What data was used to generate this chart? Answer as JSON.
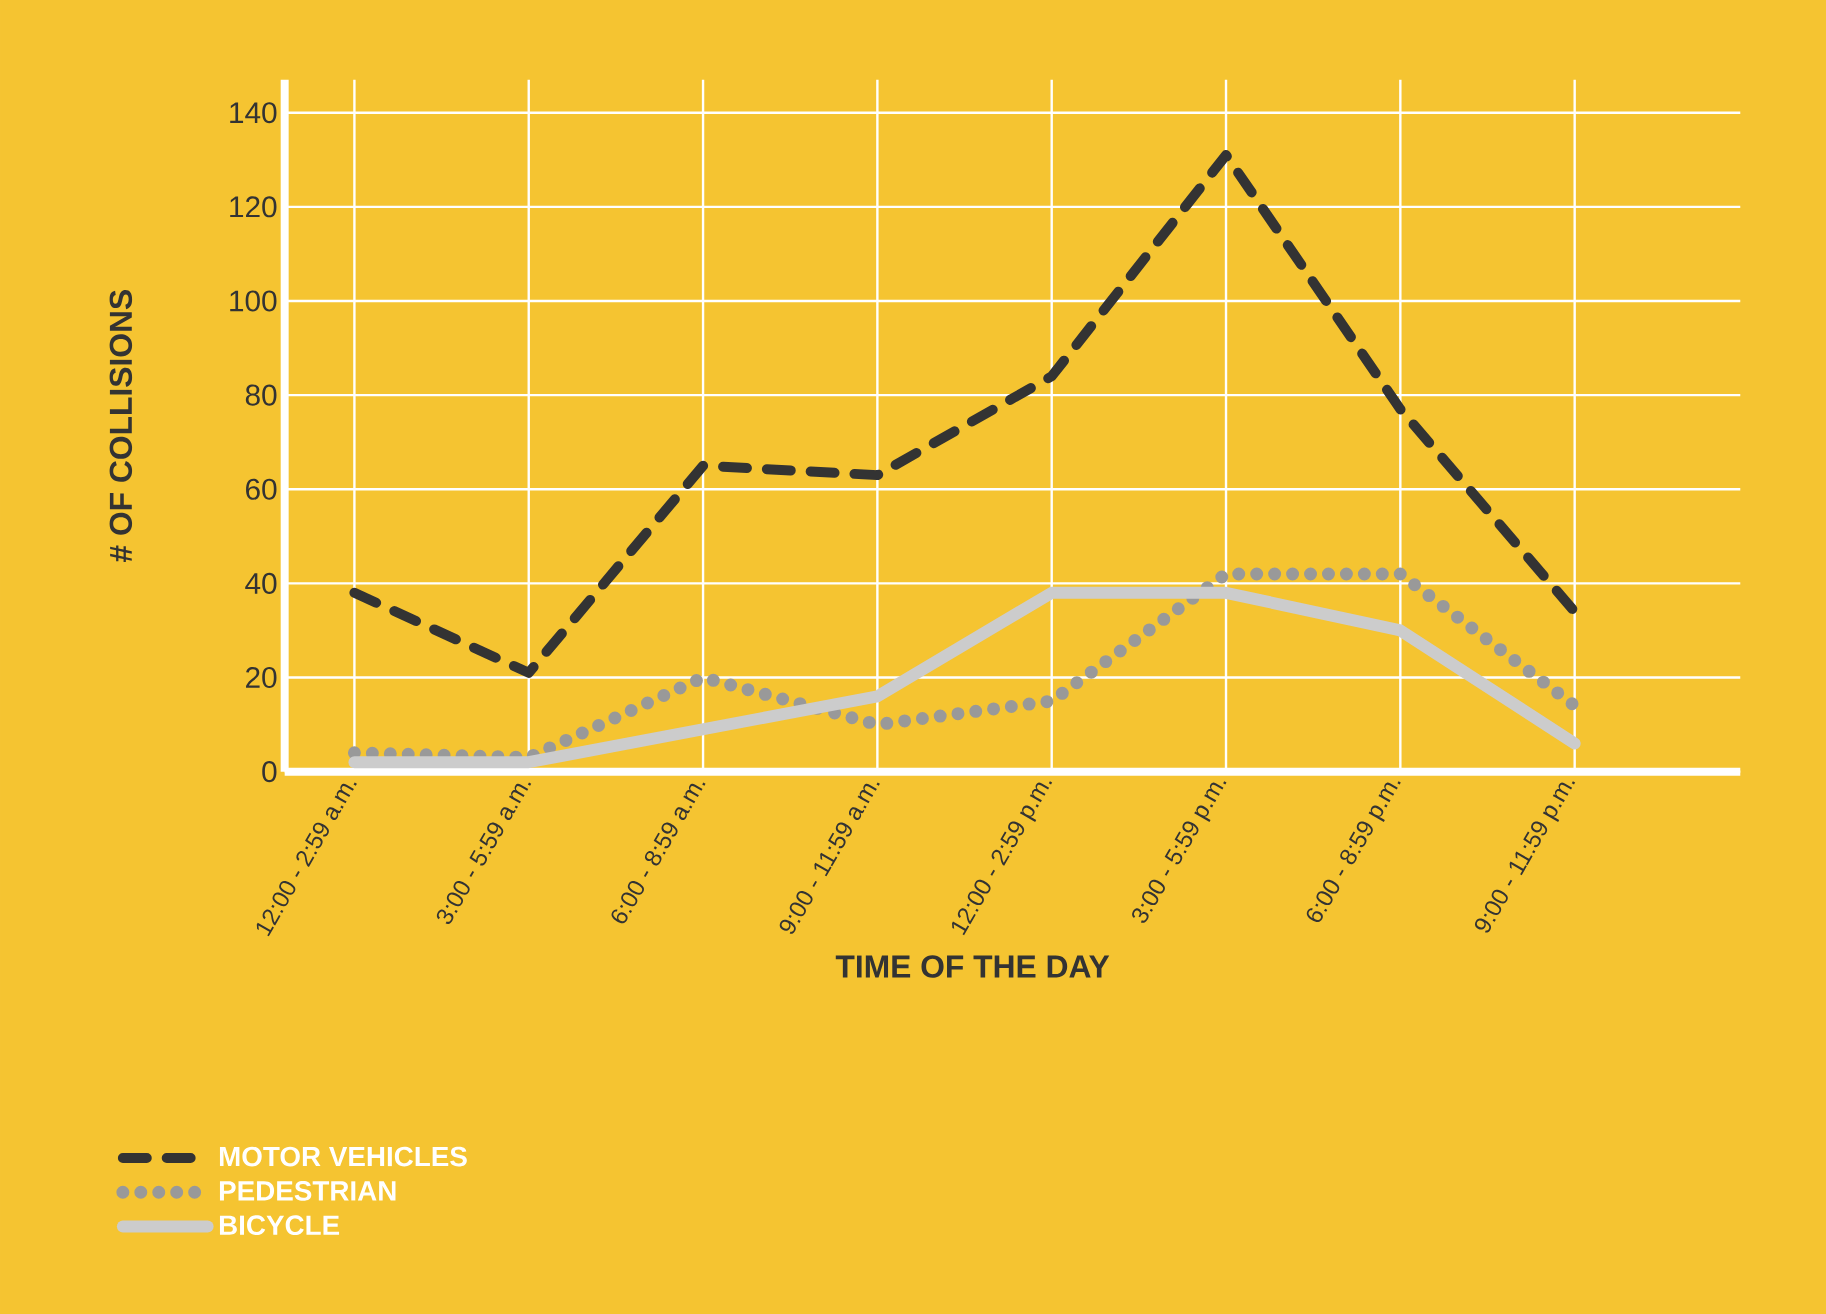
{
  "chart_data": {
    "type": "line",
    "xlabel": "TIME OF THE DAY",
    "ylabel": "# OF COLLISIONS",
    "categories": [
      "12:00 - 2:59 a.m.",
      "3:00 - 5:59 a.m.",
      "6:00 - 8:59 a.m.",
      "9:00 - 11:59 a.m.",
      "12:00 - 2:59 p.m.",
      "3:00 - 5:59 p.m.",
      "6:00 - 8:59 p.m.",
      "9:00 - 11:59 p.m."
    ],
    "series": [
      {
        "name": "MOTOR VEHICLES",
        "color": "#333333",
        "line_style": "dashed",
        "values": [
          38,
          21,
          65,
          63,
          84,
          131,
          77,
          34
        ]
      },
      {
        "name": "PEDESTRIAN",
        "color": "#999999",
        "line_style": "dotted",
        "values": [
          4,
          3,
          20,
          10,
          15,
          42,
          42,
          14
        ]
      },
      {
        "name": "BICYCLE",
        "color": "#cccccc",
        "line_style": "solid",
        "values": [
          2,
          2,
          9,
          16,
          38,
          38,
          30,
          6
        ]
      }
    ],
    "ylim": [
      0,
      147
    ],
    "yticks": [
      0,
      20,
      40,
      60,
      80,
      100,
      120,
      140
    ],
    "grid": true,
    "legend": "bottom left"
  }
}
